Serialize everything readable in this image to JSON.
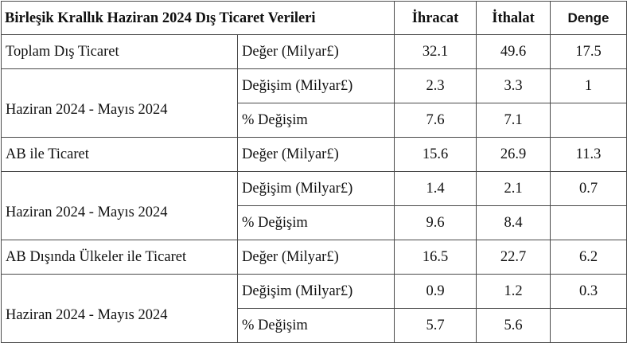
{
  "table": {
    "title": "Birleşik Krallık Haziran 2024 Dış Ticaret Verileri",
    "columns": [
      "İhracat",
      "İthalat",
      "Denge"
    ],
    "sections": [
      {
        "label": "Toplam Dış Ticaret",
        "value_row": {
          "metric": "Değer (Milyar£)",
          "ihracat": "32.1",
          "ithalat": "49.6",
          "denge": "17.5"
        },
        "period_label": "Haziran 2024 - Mayıs 2024",
        "change_row": {
          "metric": "Değişim (Milyar£)",
          "ihracat": "2.3",
          "ithalat": "3.3",
          "denge": "1"
        },
        "pct_row": {
          "metric": "% Değişim",
          "ihracat": "7.6",
          "ithalat": "7.1",
          "denge": ""
        }
      },
      {
        "label": "AB ile Ticaret",
        "value_row": {
          "metric": "Değer (Milyar£)",
          "ihracat": "15.6",
          "ithalat": "26.9",
          "denge": "11.3"
        },
        "period_label": "Haziran 2024 - Mayıs 2024",
        "change_row": {
          "metric": "Değişim (Milyar£)",
          "ihracat": "1.4",
          "ithalat": "2.1",
          "denge": "0.7"
        },
        "pct_row": {
          "metric": "% Değişim",
          "ihracat": "9.6",
          "ithalat": "8.4",
          "denge": ""
        }
      },
      {
        "label": "AB Dışında Ülkeler ile Ticaret",
        "value_row": {
          "metric": "Değer (Milyar£)",
          "ihracat": "16.5",
          "ithalat": "22.7",
          "denge": "6.2"
        },
        "period_label": "Haziran 2024 - Mayıs 2024",
        "change_row": {
          "metric": "Değişim (Milyar£)",
          "ihracat": "0.9",
          "ithalat": "1.2",
          "denge": "0.3"
        },
        "pct_row": {
          "metric": "% Değişim",
          "ihracat": "5.7",
          "ithalat": "5.6",
          "denge": ""
        }
      }
    ]
  }
}
